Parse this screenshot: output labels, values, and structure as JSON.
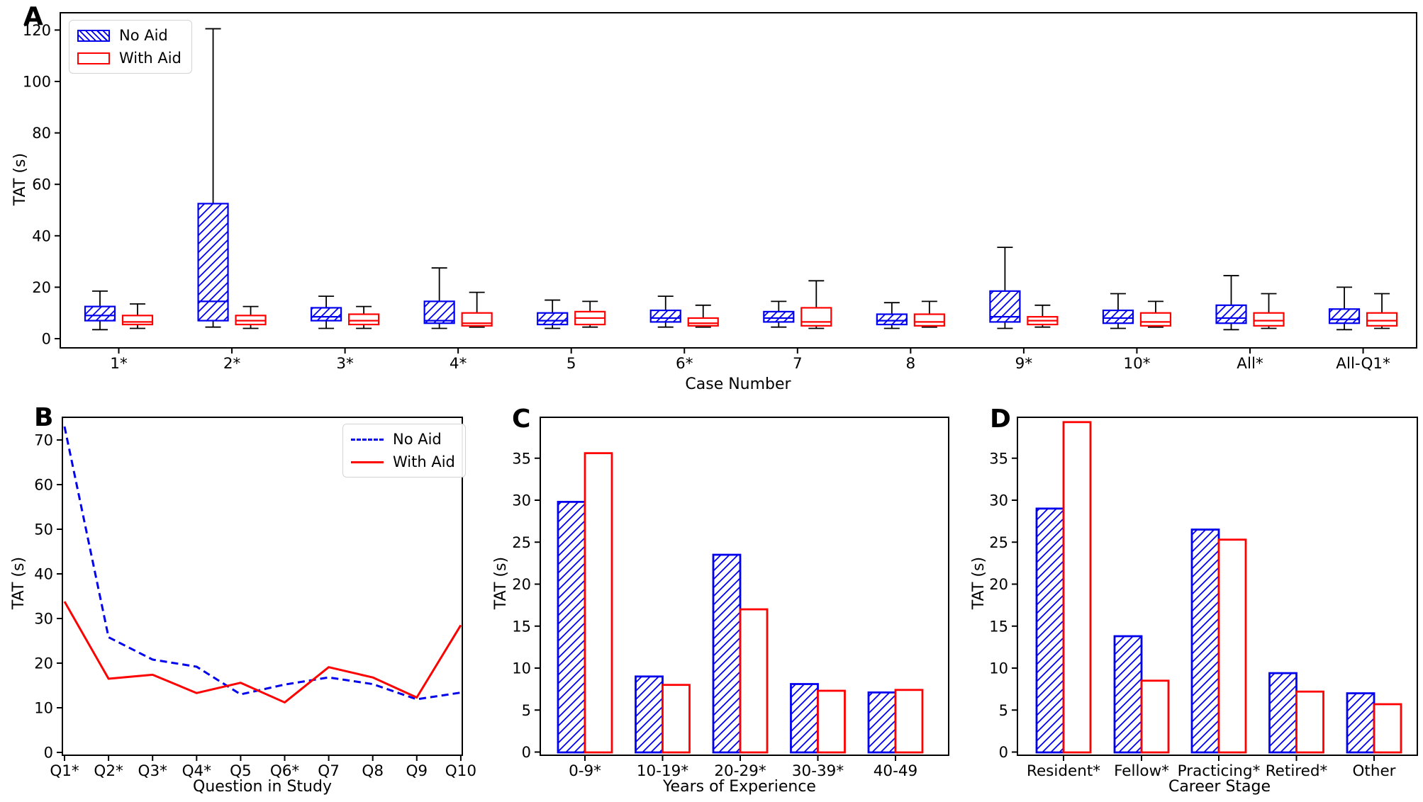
{
  "figure": {
    "background": "#ffffff",
    "colors": {
      "no_aid": "#0000ee",
      "with_aid": "#ff0000",
      "axis": "#000000"
    },
    "ylabel_shared": "TAT (s)"
  },
  "chart_data": [
    {
      "id": "A",
      "panel_label": "A",
      "type": "boxplot",
      "xlabel": "Case Number",
      "ylabel": "TAT (s)",
      "ylim": [
        -3.6,
        126.7
      ],
      "yticks": [
        0,
        20,
        40,
        60,
        80,
        100,
        120
      ],
      "grid": false,
      "legend": {
        "position": "top-left",
        "entries": [
          {
            "label": "No Aid",
            "style": "hatched-blue-box"
          },
          {
            "label": "With Aid",
            "style": "red-box"
          }
        ]
      },
      "categories": [
        "1*",
        "2*",
        "3*",
        "4*",
        "5",
        "6*",
        "7",
        "8",
        "9*",
        "10*",
        "All*",
        "All-Q1*"
      ],
      "series": [
        {
          "name": "No Aid",
          "boxes": [
            {
              "lo": 3.5,
              "q1": 7.0,
              "med": 9.0,
              "q3": 12.5,
              "hi": 18.5
            },
            {
              "lo": 4.5,
              "q1": 7.0,
              "med": 14.5,
              "q3": 52.5,
              "hi": 120.5
            },
            {
              "lo": 4.0,
              "q1": 7.0,
              "med": 8.5,
              "q3": 12.0,
              "hi": 16.5
            },
            {
              "lo": 4.0,
              "q1": 6.0,
              "med": 7.0,
              "q3": 14.5,
              "hi": 27.5
            },
            {
              "lo": 4.0,
              "q1": 5.5,
              "med": 7.0,
              "q3": 10.0,
              "hi": 15.0
            },
            {
              "lo": 4.5,
              "q1": 6.5,
              "med": 8.0,
              "q3": 11.0,
              "hi": 16.5
            },
            {
              "lo": 4.5,
              "q1": 6.5,
              "med": 8.0,
              "q3": 10.5,
              "hi": 14.5
            },
            {
              "lo": 4.0,
              "q1": 5.5,
              "med": 7.0,
              "q3": 9.5,
              "hi": 14.0
            },
            {
              "lo": 4.0,
              "q1": 6.5,
              "med": 8.5,
              "q3": 18.5,
              "hi": 35.5
            },
            {
              "lo": 4.0,
              "q1": 6.0,
              "med": 8.0,
              "q3": 11.0,
              "hi": 17.5
            },
            {
              "lo": 3.5,
              "q1": 6.0,
              "med": 8.0,
              "q3": 13.0,
              "hi": 24.5
            },
            {
              "lo": 3.5,
              "q1": 6.0,
              "med": 7.5,
              "q3": 11.5,
              "hi": 20.0
            }
          ]
        },
        {
          "name": "With Aid",
          "boxes": [
            {
              "lo": 4.0,
              "q1": 5.5,
              "med": 6.5,
              "q3": 9.0,
              "hi": 13.5
            },
            {
              "lo": 4.0,
              "q1": 5.5,
              "med": 7.0,
              "q3": 9.0,
              "hi": 12.5
            },
            {
              "lo": 4.0,
              "q1": 5.5,
              "med": 7.0,
              "q3": 9.5,
              "hi": 12.5
            },
            {
              "lo": 4.5,
              "q1": 5.0,
              "med": 6.0,
              "q3": 10.0,
              "hi": 18.0
            },
            {
              "lo": 4.5,
              "q1": 5.5,
              "med": 8.0,
              "q3": 10.5,
              "hi": 14.5
            },
            {
              "lo": 4.5,
              "q1": 5.0,
              "med": 6.0,
              "q3": 8.0,
              "hi": 13.0
            },
            {
              "lo": 4.0,
              "q1": 5.0,
              "med": 6.5,
              "q3": 12.0,
              "hi": 22.5
            },
            {
              "lo": 4.5,
              "q1": 5.0,
              "med": 6.5,
              "q3": 9.5,
              "hi": 14.5
            },
            {
              "lo": 4.5,
              "q1": 5.5,
              "med": 7.0,
              "q3": 8.5,
              "hi": 13.0
            },
            {
              "lo": 4.5,
              "q1": 5.0,
              "med": 6.5,
              "q3": 10.0,
              "hi": 14.5
            },
            {
              "lo": 4.0,
              "q1": 5.0,
              "med": 7.0,
              "q3": 10.0,
              "hi": 17.5
            },
            {
              "lo": 4.0,
              "q1": 5.0,
              "med": 7.0,
              "q3": 10.0,
              "hi": 17.5
            }
          ]
        }
      ]
    },
    {
      "id": "B",
      "panel_label": "B",
      "type": "line",
      "xlabel": "Question in Study",
      "ylabel": "TAT (s)",
      "ylim": [
        -0.6,
        75.2
      ],
      "yticks": [
        0,
        10,
        20,
        30,
        40,
        50,
        60,
        70
      ],
      "grid": false,
      "legend": {
        "position": "top-right",
        "entries": [
          {
            "label": "No Aid",
            "style": "blue-dashed-line"
          },
          {
            "label": "With Aid",
            "style": "red-solid-line"
          }
        ]
      },
      "categories": [
        "Q1*",
        "Q2*",
        "Q3*",
        "Q4*",
        "Q5",
        "Q6*",
        "Q7",
        "Q8",
        "Q9",
        "Q10"
      ],
      "series": [
        {
          "name": "No Aid",
          "dashed": true,
          "values": [
            73.0,
            25.8,
            20.8,
            19.2,
            13.0,
            15.2,
            16.8,
            15.3,
            11.9,
            13.4
          ]
        },
        {
          "name": "With Aid",
          "dashed": false,
          "values": [
            33.8,
            16.5,
            17.4,
            13.3,
            15.6,
            11.2,
            19.1,
            16.8,
            12.3,
            28.5
          ]
        }
      ]
    },
    {
      "id": "C",
      "panel_label": "C",
      "type": "bar",
      "xlabel": "Years of Experience",
      "ylabel": "TAT (s)",
      "ylim": [
        -0.4,
        39.9
      ],
      "yticks": [
        0,
        5,
        10,
        15,
        20,
        25,
        30,
        35
      ],
      "grid": false,
      "categories": [
        "0-9*",
        "10-19*",
        "20-29*",
        "30-39*",
        "40-49"
      ],
      "series": [
        {
          "name": "No Aid",
          "values": [
            29.8,
            9.0,
            23.5,
            8.1,
            7.1
          ]
        },
        {
          "name": "With Aid",
          "values": [
            35.6,
            8.0,
            17.0,
            7.3,
            7.4
          ]
        }
      ]
    },
    {
      "id": "D",
      "panel_label": "D",
      "type": "bar",
      "xlabel": "Career Stage",
      "ylabel": "TAT (s)",
      "ylim": [
        -0.4,
        39.9
      ],
      "yticks": [
        0,
        5,
        10,
        15,
        20,
        25,
        30,
        35
      ],
      "grid": false,
      "categories": [
        "Resident*",
        "Fellow*",
        "Practicing*",
        "Retired*",
        "Other"
      ],
      "series": [
        {
          "name": "No Aid",
          "values": [
            29.0,
            13.8,
            26.5,
            9.4,
            7.0
          ]
        },
        {
          "name": "With Aid",
          "values": [
            39.3,
            8.5,
            25.3,
            7.2,
            5.7
          ]
        }
      ]
    }
  ]
}
